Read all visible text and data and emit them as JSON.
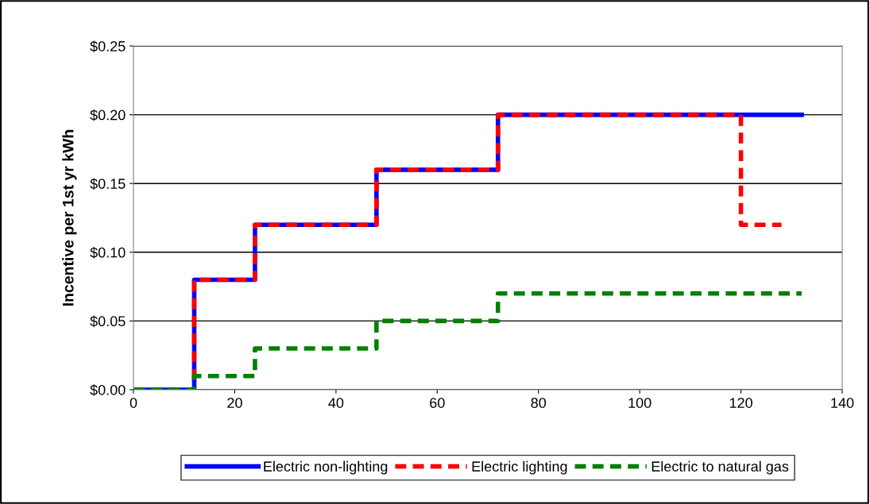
{
  "chart_data": {
    "type": "step",
    "ylabel": "Incentive per 1st yr kWh",
    "xlim": [
      0,
      140
    ],
    "xticks": [
      0,
      20,
      40,
      60,
      80,
      100,
      120,
      140
    ],
    "ylim": [
      0,
      0.25
    ],
    "yticks": [
      {
        "value": 0,
        "label": "$0.00"
      },
      {
        "value": 0.05,
        "label": "$0.05"
      },
      {
        "value": 0.1,
        "label": "$0.10"
      },
      {
        "value": 0.15,
        "label": "$0.15"
      },
      {
        "value": 0.2,
        "label": "$0.20"
      },
      {
        "value": 0.25,
        "label": "$0.25"
      }
    ],
    "grid": "y",
    "legend": "bottom",
    "series": [
      {
        "name": "Electric non-lighting",
        "color": "#0000ff",
        "line_style": "solid",
        "x": [
          0,
          12,
          24,
          48,
          72,
          132
        ],
        "values": [
          0,
          0.08,
          0.12,
          0.16,
          0.2,
          0.2
        ]
      },
      {
        "name": "Electric lighting",
        "color": "#ff0000",
        "line_style": "dashed",
        "x": [
          0,
          12,
          24,
          48,
          72,
          120,
          128
        ],
        "values": [
          0,
          0.08,
          0.12,
          0.16,
          0.2,
          0.12,
          0.12
        ]
      },
      {
        "name": "Electric to natural gas",
        "color": "#008000",
        "line_style": "dashed",
        "x": [
          0,
          12,
          24,
          48,
          72,
          132
        ],
        "values": [
          0,
          0.01,
          0.03,
          0.05,
          0.07,
          0.07
        ]
      }
    ]
  }
}
